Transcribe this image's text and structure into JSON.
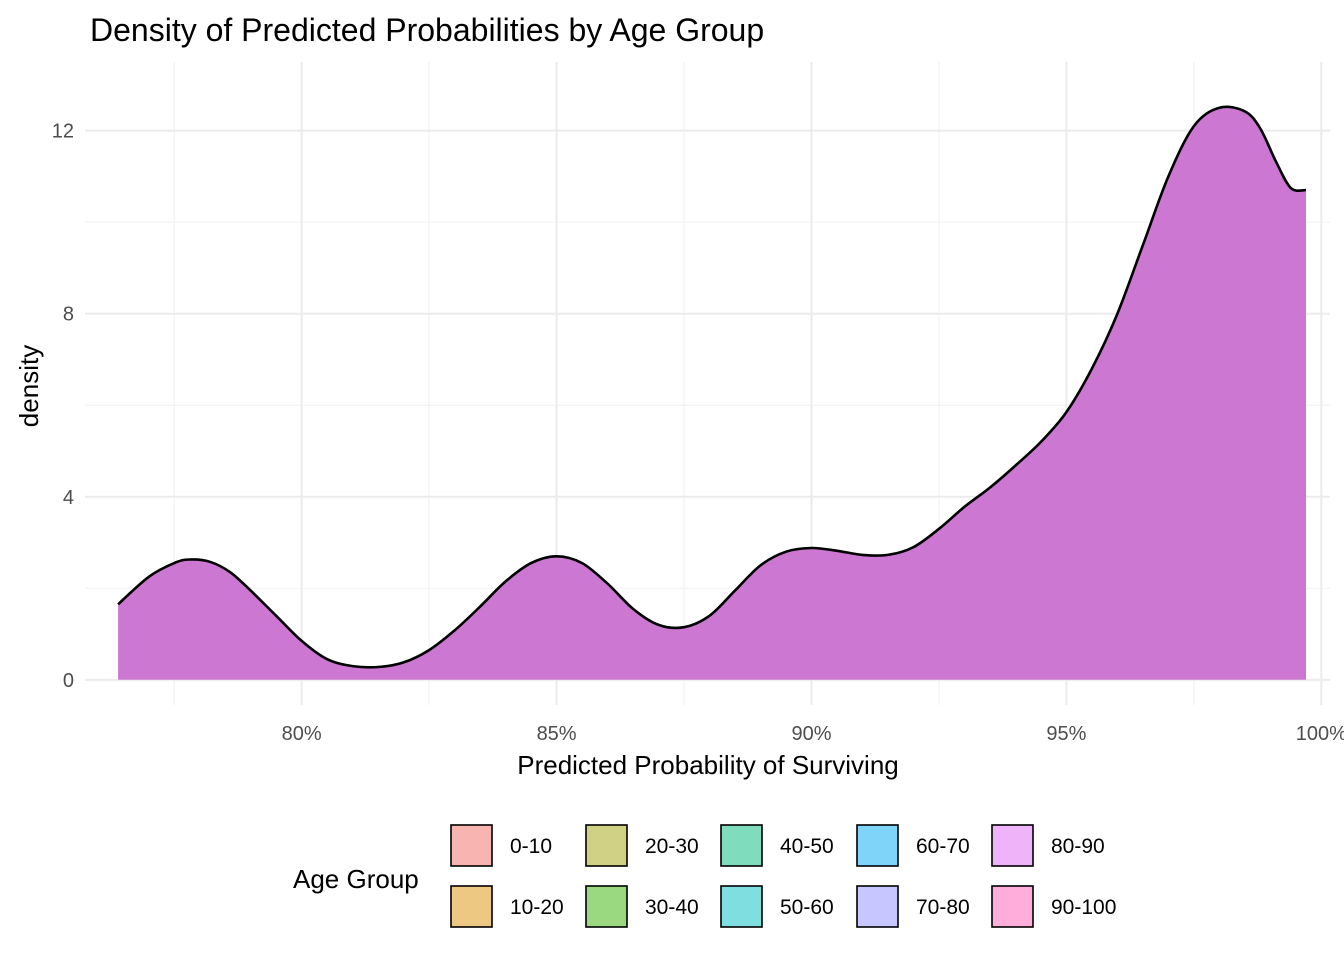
{
  "chart_data": {
    "type": "area",
    "title": "Density of Predicted Probabilities by Age Group",
    "xlabel": "Predicted Probability of Surviving",
    "ylabel": "density",
    "xlim": [
      0.7575,
      1.0017
    ],
    "ylim": [
      -0.55,
      13.5
    ],
    "x_ticks": [
      0.8,
      0.85,
      0.9,
      0.95,
      1.0
    ],
    "x_tick_labels": [
      "80%",
      "85%",
      "90%",
      "95%",
      "100%"
    ],
    "y_ticks": [
      0,
      4,
      8,
      12
    ],
    "y_tick_labels": [
      "0",
      "4",
      "8",
      "12"
    ],
    "grid": true,
    "legend": {
      "title": "Age Group",
      "position": "bottom",
      "entries": [
        {
          "label": "0-10",
          "color": "#f8b4b0"
        },
        {
          "label": "10-20",
          "color": "#ecc882"
        },
        {
          "label": "20-30",
          "color": "#d0d184"
        },
        {
          "label": "30-40",
          "color": "#9ad97f"
        },
        {
          "label": "40-50",
          "color": "#7fdcbd"
        },
        {
          "label": "50-60",
          "color": "#7fdfe0"
        },
        {
          "label": "60-70",
          "color": "#7fd4f9"
        },
        {
          "label": "70-80",
          "color": "#c8c6fe"
        },
        {
          "label": "80-90",
          "color": "#efb3fa"
        },
        {
          "label": "90-100",
          "color": "#ffaedc"
        }
      ]
    },
    "series": [
      {
        "name": "80-90",
        "color": "#cc77d2",
        "x": [
          0.764,
          0.77,
          0.775,
          0.778,
          0.782,
          0.786,
          0.79,
          0.795,
          0.8,
          0.805,
          0.81,
          0.815,
          0.82,
          0.825,
          0.83,
          0.835,
          0.84,
          0.845,
          0.85,
          0.855,
          0.86,
          0.865,
          0.87,
          0.875,
          0.88,
          0.885,
          0.89,
          0.895,
          0.9,
          0.905,
          0.91,
          0.915,
          0.92,
          0.925,
          0.93,
          0.935,
          0.94,
          0.945,
          0.95,
          0.955,
          0.96,
          0.965,
          0.97,
          0.975,
          0.98,
          0.985,
          0.988,
          0.991,
          0.994,
          0.997
        ],
        "y": [
          1.65,
          2.25,
          2.55,
          2.63,
          2.58,
          2.35,
          1.95,
          1.4,
          0.85,
          0.45,
          0.3,
          0.28,
          0.38,
          0.65,
          1.08,
          1.6,
          2.15,
          2.55,
          2.7,
          2.55,
          2.1,
          1.55,
          1.2,
          1.15,
          1.4,
          1.95,
          2.5,
          2.8,
          2.88,
          2.82,
          2.73,
          2.73,
          2.9,
          3.3,
          3.78,
          4.2,
          4.68,
          5.2,
          5.85,
          6.8,
          8.0,
          9.5,
          11.0,
          12.1,
          12.5,
          12.42,
          12.05,
          11.35,
          10.75,
          10.7
        ]
      }
    ]
  }
}
